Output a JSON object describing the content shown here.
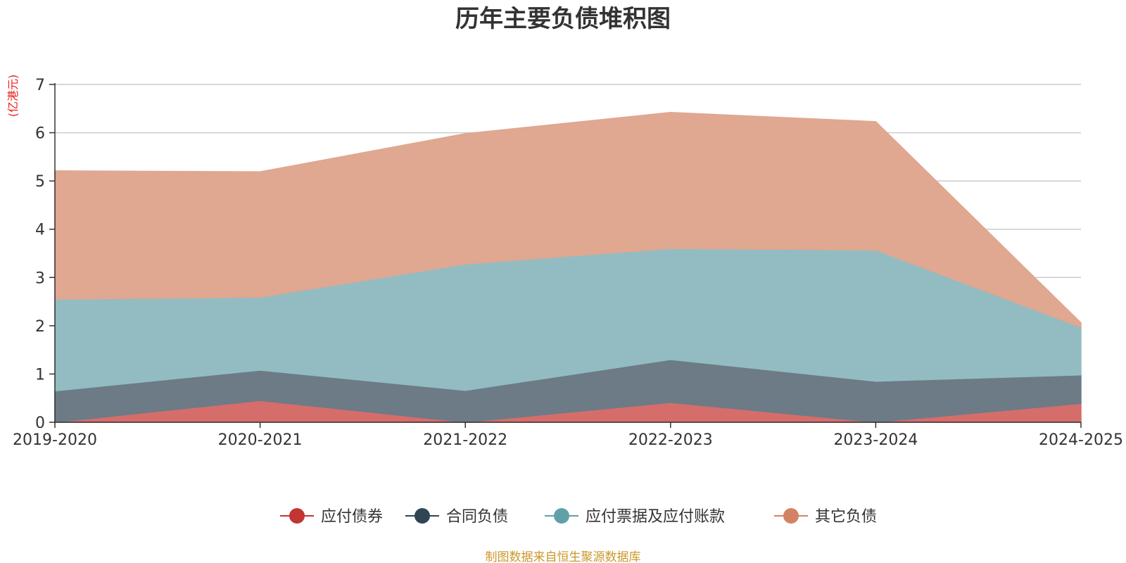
{
  "chart_data": {
    "type": "area",
    "stacked": true,
    "title": "历年主要负债堆积图",
    "ylabel": "(亿港元)",
    "categories": [
      "2019-2020",
      "2020-2021",
      "2021-2022",
      "2022-2023",
      "2023-2024",
      "2024-2025"
    ],
    "ylim": [
      0,
      7
    ],
    "yticks": [
      0,
      1,
      2,
      3,
      4,
      5,
      6,
      7
    ],
    "grid": true,
    "legend_position": "bottom",
    "series": [
      {
        "name": "应付债券",
        "color": "#c23531",
        "fill": "#d56d6b",
        "values": [
          0,
          0.45,
          0,
          0.41,
          0,
          0.39
        ]
      },
      {
        "name": "合同负债",
        "color": "#2f4554",
        "fill": "#6d7b86",
        "values": [
          0.65,
          0.63,
          0.66,
          0.89,
          0.85,
          0.59
        ]
      },
      {
        "name": "应付票据及应付账款",
        "color": "#61a0a8",
        "fill": "#92bcc2",
        "values": [
          1.9,
          1.51,
          2.62,
          2.3,
          2.72,
          0.99
        ]
      },
      {
        "name": "其它负债",
        "color": "#d48265",
        "fill": "#e0a791",
        "values": [
          2.66,
          2.6,
          2.7,
          2.82,
          2.66,
          0.09
        ]
      }
    ],
    "source": "制图数据来自恒生聚源数据库"
  }
}
